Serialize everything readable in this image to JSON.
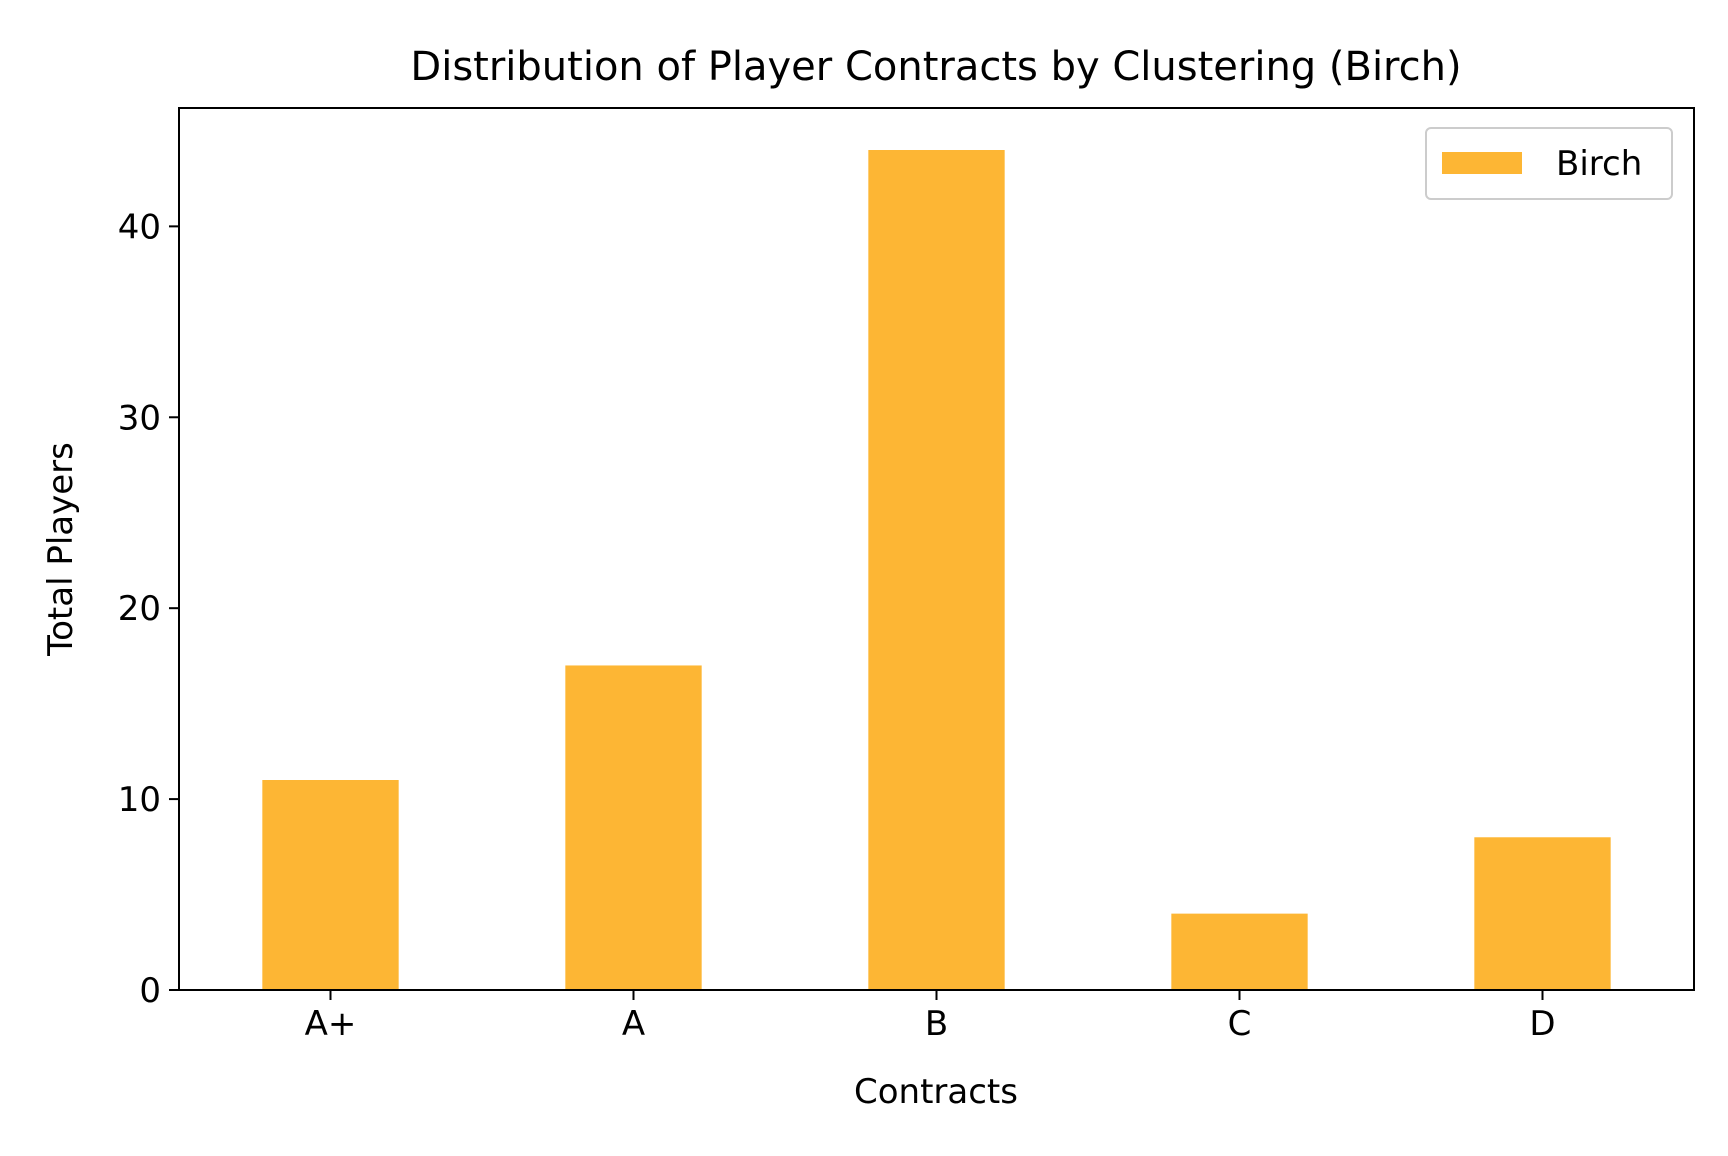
{
  "chart_data": {
    "type": "bar",
    "title": "Distribution of Player Contracts by Clustering (Birch)",
    "xlabel": "Contracts",
    "ylabel": "Total Players",
    "categories": [
      "A+",
      "A",
      "B",
      "C",
      "D"
    ],
    "series": [
      {
        "name": "Birch",
        "values": [
          11,
          17,
          44,
          4,
          8
        ],
        "color": "#FDB634"
      }
    ],
    "ylim": [
      0,
      46.2
    ],
    "yticks": [
      0,
      10,
      20,
      30,
      40
    ],
    "grid": false,
    "legend": "top-right"
  }
}
